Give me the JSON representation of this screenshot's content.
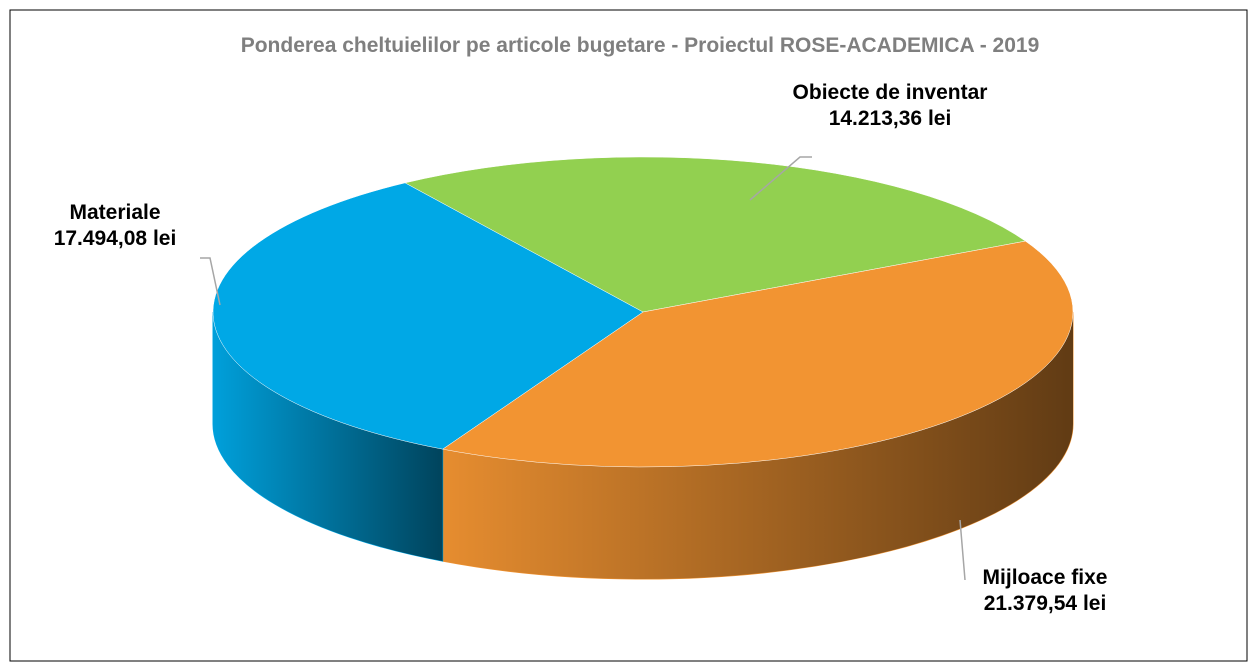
{
  "chart_data": {
    "type": "pie3d",
    "title": "Ponderea cheltuielilor pe articole bugetare - Proiectul ROSE-ACADEMICA - 2019",
    "categories": [
      "Obiecte de inventar",
      "Mijloace fixe",
      "Materiale"
    ],
    "values": [
      14213.36,
      21379.54,
      17494.08
    ],
    "value_labels": [
      "14.213,36 lei",
      "21.379,54 lei",
      "17.494,08 lei"
    ],
    "colors": [
      "#92d050",
      "#f29432",
      "#00a8e6"
    ]
  }
}
